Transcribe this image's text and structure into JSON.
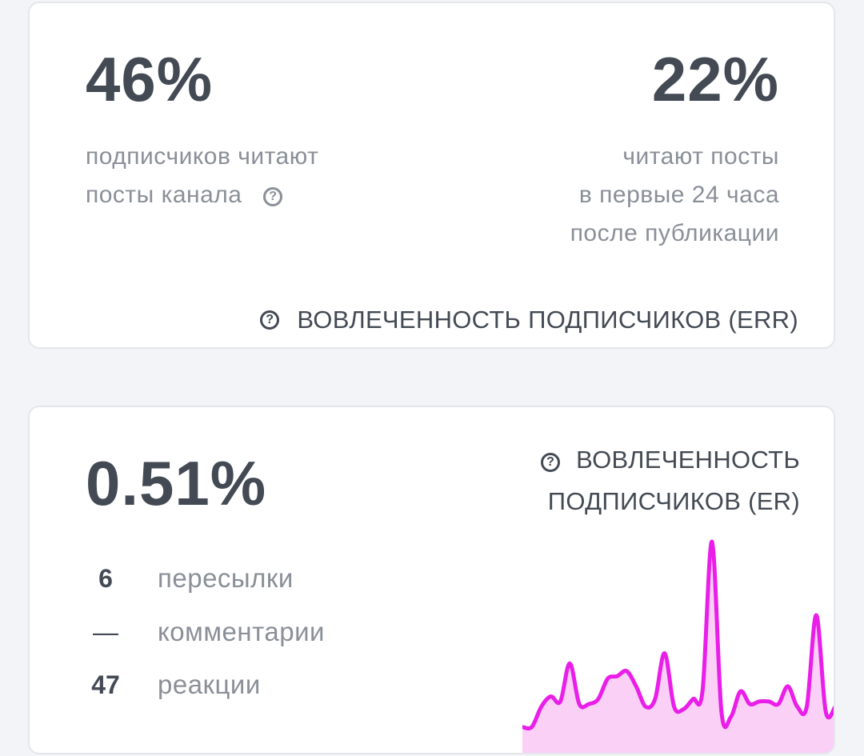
{
  "err_card": {
    "left_value": "46%",
    "left_desc": [
      "подписчиков читают",
      "посты канала"
    ],
    "right_value": "22%",
    "right_desc": [
      "читают посты",
      "в первые 24 часа",
      "после публикации"
    ],
    "caption": "ВОВЛЕЧЕННОСТЬ ПОДПИСЧИКОВ (ERR)",
    "help_symbol": "?"
  },
  "er_card": {
    "value": "0.51%",
    "caption_lines": [
      "ВОВЛЕЧЕННОСТЬ",
      "ПОДПИСЧИКОВ (ER)"
    ],
    "help_symbol": "?",
    "stats": [
      {
        "value": "6",
        "label": "пересылки"
      },
      {
        "value": "—",
        "label": "комментарии"
      },
      {
        "value": "47",
        "label": "реакции"
      }
    ],
    "sparkline": {
      "line_color": "#e91ee9",
      "fill_color": "#fbd0f7",
      "values": [
        2,
        2,
        10,
        14,
        12,
        27,
        11,
        11,
        13,
        21,
        22,
        24,
        18,
        10,
        13,
        31,
        10,
        9,
        13,
        16,
        75,
        8,
        6,
        16,
        11,
        12,
        12,
        11,
        18,
        10,
        10,
        46,
        8,
        10
      ]
    }
  }
}
